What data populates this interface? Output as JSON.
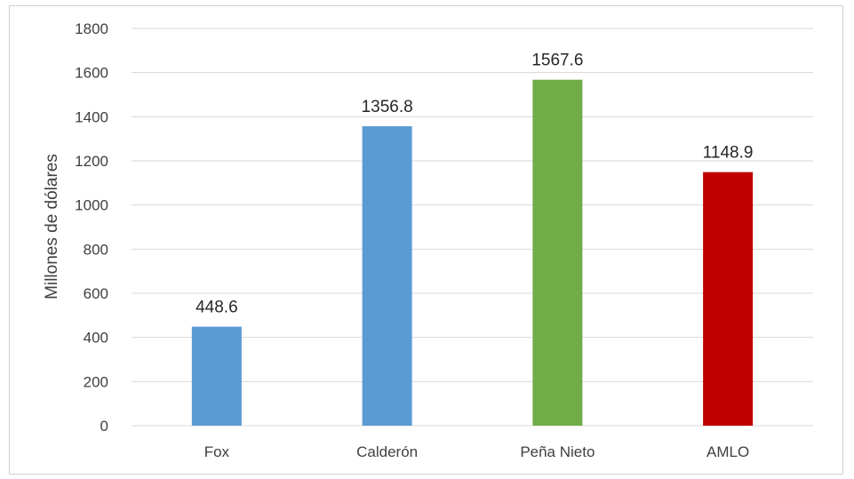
{
  "chart_data": {
    "type": "bar",
    "title": "",
    "xlabel": "",
    "ylabel": "Millones de dólares",
    "ylim": [
      0,
      1800
    ],
    "yticks": [
      0,
      200,
      400,
      600,
      800,
      1000,
      1200,
      1400,
      1600,
      1800
    ],
    "grid": true,
    "legend": "none",
    "categories": [
      "Fox",
      "Calderón",
      "Peña Nieto",
      "AMLO"
    ],
    "values": [
      448.6,
      1356.8,
      1567.6,
      1148.9
    ],
    "value_labels": [
      "448.6",
      "1356.8",
      "1567.6",
      "1148.9"
    ],
    "colors": [
      "#5b9bd5",
      "#5b9bd5",
      "#70ad47",
      "#c00000"
    ],
    "gridline_color": "#d9d9d9"
  }
}
